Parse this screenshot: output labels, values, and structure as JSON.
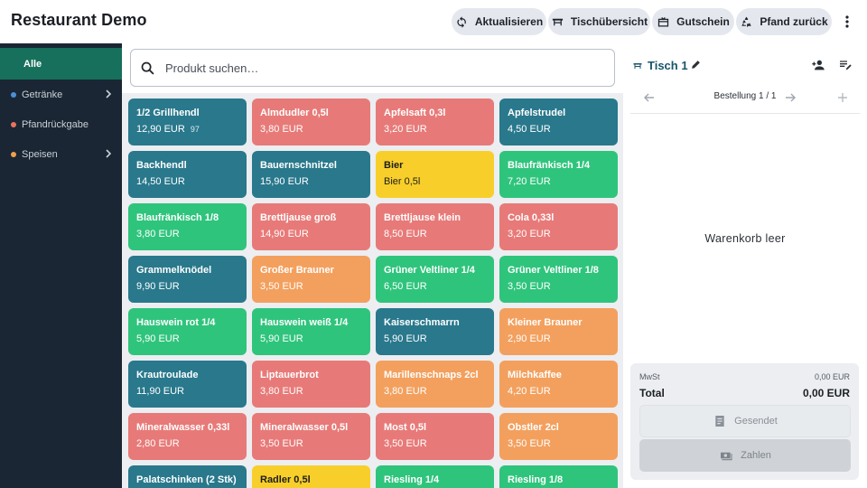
{
  "app": {
    "title": "Restaurant Demo"
  },
  "header": {
    "buttons": [
      {
        "label": "Aktualisieren",
        "icon": "refresh-icon"
      },
      {
        "label": "Tischübersicht",
        "icon": "table-icon"
      },
      {
        "label": "Gutschein",
        "icon": "voucher-icon"
      },
      {
        "label": "Pfand zurück",
        "icon": "recycle-icon"
      }
    ],
    "more_icon": "more-vert-icon"
  },
  "sidebar": {
    "items": [
      {
        "label": "Alle",
        "active": true
      },
      {
        "label": "Getränke",
        "dot_color": "#4a90d9",
        "has_children": true
      },
      {
        "label": "Pfandrückgabe",
        "dot_color": "#e8745c"
      },
      {
        "label": "Speisen",
        "dot_color": "#f0a04b",
        "has_children": true
      }
    ]
  },
  "search": {
    "placeholder": "Produkt suchen…",
    "value": ""
  },
  "colors": {
    "teal": "#29788c",
    "red": "#e77a78",
    "yellow": "#f8cf2a",
    "green": "#2fc47c",
    "orange": "#f3a05e",
    "accent": "#17705c",
    "sidebar_bg": "#1a2633"
  },
  "products": [
    {
      "name": "1/2 Grillhendl",
      "price": "12,90 EUR",
      "stock": "97",
      "color": "teal"
    },
    {
      "name": "Almdudler 0,5l",
      "price": "3,80 EUR",
      "color": "red"
    },
    {
      "name": "Apfelsaft 0,3l",
      "price": "3,20 EUR",
      "color": "red"
    },
    {
      "name": "Apfelstrudel",
      "price": "4,50 EUR",
      "color": "teal"
    },
    {
      "name": "Backhendl",
      "price": "14,50 EUR",
      "color": "teal"
    },
    {
      "name": "Bauernschnitzel",
      "price": "15,90 EUR",
      "color": "teal"
    },
    {
      "name": "Bier",
      "price": "Bier 0,5l",
      "color": "yellow"
    },
    {
      "name": "Blaufränkisch 1/4",
      "price": "7,20 EUR",
      "color": "green"
    },
    {
      "name": "Blaufränkisch 1/8",
      "price": "3,80 EUR",
      "color": "green"
    },
    {
      "name": "Brettljause groß",
      "price": "14,90 EUR",
      "color": "red"
    },
    {
      "name": "Brettljause klein",
      "price": "8,50 EUR",
      "color": "red"
    },
    {
      "name": "Cola 0,33l",
      "price": "3,20 EUR",
      "color": "red"
    },
    {
      "name": "Grammelknödel",
      "price": "9,90 EUR",
      "color": "teal"
    },
    {
      "name": "Großer Brauner",
      "price": "3,50 EUR",
      "color": "orange"
    },
    {
      "name": "Grüner Veltliner 1/4",
      "price": "6,50 EUR",
      "color": "green"
    },
    {
      "name": "Grüner Veltliner 1/8",
      "price": "3,50 EUR",
      "color": "green"
    },
    {
      "name": "Hauswein rot 1/4",
      "price": "5,90 EUR",
      "color": "green"
    },
    {
      "name": "Hauswein weiß 1/4",
      "price": "5,90 EUR",
      "color": "green"
    },
    {
      "name": "Kaiserschmarrn",
      "price": "5,90 EUR",
      "color": "teal"
    },
    {
      "name": "Kleiner Brauner",
      "price": "2,90 EUR",
      "color": "orange"
    },
    {
      "name": "Krautroulade",
      "price": "11,90 EUR",
      "color": "teal"
    },
    {
      "name": "Liptauerbrot",
      "price": "3,80 EUR",
      "color": "red"
    },
    {
      "name": "Marillenschnaps 2cl",
      "price": "3,80 EUR",
      "color": "orange"
    },
    {
      "name": "Milchkaffee",
      "price": "4,20 EUR",
      "color": "orange"
    },
    {
      "name": "Mineralwasser 0,33l",
      "price": "2,80 EUR",
      "color": "red"
    },
    {
      "name": "Mineralwasser 0,5l",
      "price": "3,50 EUR",
      "color": "red"
    },
    {
      "name": "Most 0,5l",
      "price": "3,50 EUR",
      "color": "red"
    },
    {
      "name": "Obstler 2cl",
      "price": "3,50 EUR",
      "color": "orange"
    },
    {
      "name": "Palatschinken (2 Stk)",
      "price": "",
      "color": "teal"
    },
    {
      "name": "Radler 0,5l",
      "price": "",
      "color": "yellow"
    },
    {
      "name": "Riesling 1/4",
      "price": "",
      "color": "green"
    },
    {
      "name": "Riesling 1/8",
      "price": "",
      "color": "green"
    }
  ],
  "order": {
    "table_title": "Tisch 1",
    "order_label": "Bestellung 1 / 1",
    "empty_text": "Warenkorb leer",
    "mwst_label": "MwSt",
    "mwst_value": "0,00 EUR",
    "total_label": "Total",
    "total_value": "0,00 EUR",
    "sent_label": "Gesendet",
    "pay_label": "Zahlen"
  }
}
